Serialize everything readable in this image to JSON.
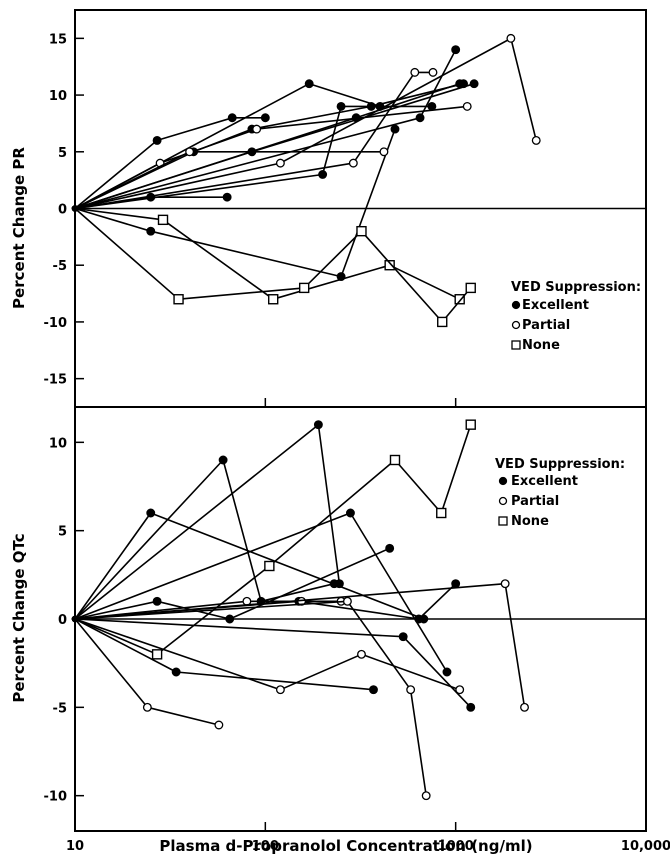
{
  "chart_data": [
    {
      "type": "line",
      "panel": "top",
      "ylabel": "Percent Change PR",
      "xscale": "log",
      "xlim": [
        10,
        10000
      ],
      "ylim": [
        -17.5,
        17.5
      ],
      "yticks": [
        15,
        10,
        5,
        0,
        -5,
        -10,
        -15
      ],
      "ytick_labels": [
        "15",
        "10",
        "5",
        "0",
        "-5",
        "-10",
        "-15"
      ],
      "reference_line_y": 0,
      "legend": {
        "title": "VED Suppression:",
        "placement": "center-right",
        "entries": [
          {
            "label": "Excellent",
            "marker": "filled-circle"
          },
          {
            "label": "Partial",
            "marker": "open-circle"
          },
          {
            "label": "None",
            "marker": "open-square"
          }
        ]
      },
      "series": [
        {
          "group": "Excellent",
          "x": [
            10,
            27,
            67,
            100
          ],
          "y": [
            0,
            6,
            8,
            8
          ]
        },
        {
          "group": "Excellent",
          "x": [
            10,
            25,
            63
          ],
          "y": [
            0,
            1,
            1
          ]
        },
        {
          "group": "Excellent",
          "x": [
            10,
            42,
            85,
            360,
            1100
          ],
          "y": [
            0,
            5,
            7,
            9,
            11
          ]
        },
        {
          "group": "Excellent",
          "x": [
            10,
            170,
            400
          ],
          "y": [
            0,
            11,
            9
          ]
        },
        {
          "group": "Excellent",
          "x": [
            10,
            650,
            1000
          ],
          "y": [
            0,
            8,
            14
          ]
        },
        {
          "group": "Excellent",
          "x": [
            10,
            25,
            250,
            480
          ],
          "y": [
            0,
            -2,
            -6,
            7
          ]
        },
        {
          "group": "Excellent",
          "x": [
            10,
            200,
            250,
            750
          ],
          "y": [
            0,
            3,
            9,
            9
          ]
        },
        {
          "group": "Excellent",
          "x": [
            10,
            300,
            1050
          ],
          "y": [
            0,
            8,
            11
          ]
        },
        {
          "group": "Excellent",
          "x": [
            10,
            85,
            1250
          ],
          "y": [
            0,
            5,
            11
          ]
        },
        {
          "group": "Partial",
          "x": [
            10,
            28,
            90,
            1150
          ],
          "y": [
            0,
            4,
            7,
            9
          ]
        },
        {
          "group": "Partial",
          "x": [
            10,
            120,
            1950,
            2650
          ],
          "y": [
            0,
            4,
            15,
            6
          ]
        },
        {
          "group": "Partial",
          "x": [
            10,
            290,
            610,
            760
          ],
          "y": [
            0,
            4,
            12,
            12
          ]
        },
        {
          "group": "Partial",
          "x": [
            10,
            40,
            420
          ],
          "y": [
            0,
            5,
            5
          ]
        },
        {
          "group": "None",
          "x": [
            10,
            29,
            110,
            450,
            1050
          ],
          "y": [
            0,
            -1,
            -8,
            -5,
            -8
          ]
        },
        {
          "group": "None",
          "x": [
            10,
            35,
            160,
            320,
            850,
            1200
          ],
          "y": [
            0,
            -8,
            -7,
            -2,
            -10,
            -7
          ]
        }
      ]
    },
    {
      "type": "line",
      "panel": "bottom",
      "ylabel": "Percent Change QTc",
      "xlabel": "Plasma d-Propranolol Concentration (ng/ml)",
      "xscale": "log",
      "xlim": [
        10,
        10000
      ],
      "xticks": [
        10,
        100,
        1000,
        10000
      ],
      "xtick_labels": [
        "10",
        "100",
        "1000",
        "10,000"
      ],
      "ylim": [
        -12,
        12
      ],
      "yticks": [
        10,
        5,
        0,
        -5,
        -10
      ],
      "ytick_labels": [
        "10",
        "5",
        "0",
        "-5",
        "-10"
      ],
      "reference_line_y": 0,
      "legend": {
        "title": "VED Suppression:",
        "placement": "top-right",
        "entries": [
          {
            "label": "Excellent",
            "marker": "filled-circle"
          },
          {
            "label": "Partial",
            "marker": "open-circle"
          },
          {
            "label": "None",
            "marker": "open-square"
          }
        ]
      },
      "series": [
        {
          "group": "Excellent",
          "x": [
            10,
            25,
            680
          ],
          "y": [
            0,
            6,
            0
          ]
        },
        {
          "group": "Excellent",
          "x": [
            10,
            60,
            95,
            230
          ],
          "y": [
            0,
            9,
            1,
            2
          ]
        },
        {
          "group": "Excellent",
          "x": [
            10,
            190,
            245
          ],
          "y": [
            0,
            11,
            2
          ]
        },
        {
          "group": "Excellent",
          "x": [
            10,
            27,
            65,
            450
          ],
          "y": [
            0,
            1,
            0,
            4
          ]
        },
        {
          "group": "Excellent",
          "x": [
            10,
            280,
            900
          ],
          "y": [
            0,
            6,
            -3
          ]
        },
        {
          "group": "Excellent",
          "x": [
            10,
            34,
            370
          ],
          "y": [
            0,
            -3,
            -4
          ]
        },
        {
          "group": "Excellent",
          "x": [
            10,
            150,
            640,
            1000
          ],
          "y": [
            0,
            1,
            0,
            2
          ]
        },
        {
          "group": "Excellent",
          "x": [
            10,
            530,
            1200
          ],
          "y": [
            0,
            -1,
            -5
          ]
        },
        {
          "group": "Partial",
          "x": [
            10,
            24,
            57
          ],
          "y": [
            0,
            -5,
            -6
          ]
        },
        {
          "group": "Partial",
          "x": [
            10,
            80,
            155,
            250
          ],
          "y": [
            0,
            1,
            1,
            1
          ]
        },
        {
          "group": "Partial",
          "x": [
            10,
            120,
            320,
            1050
          ],
          "y": [
            0,
            -4,
            -2,
            -4
          ]
        },
        {
          "group": "Partial",
          "x": [
            10,
            270,
            580,
            700
          ],
          "y": [
            0,
            1,
            -4,
            -10
          ]
        },
        {
          "group": "Partial",
          "x": [
            10,
            1820,
            2300
          ],
          "y": [
            0,
            2,
            -5
          ]
        },
        {
          "group": "None",
          "x": [
            10,
            27,
            105,
            480,
            840,
            1200
          ],
          "y": [
            0,
            -2,
            3,
            9,
            6,
            11
          ]
        }
      ]
    }
  ]
}
